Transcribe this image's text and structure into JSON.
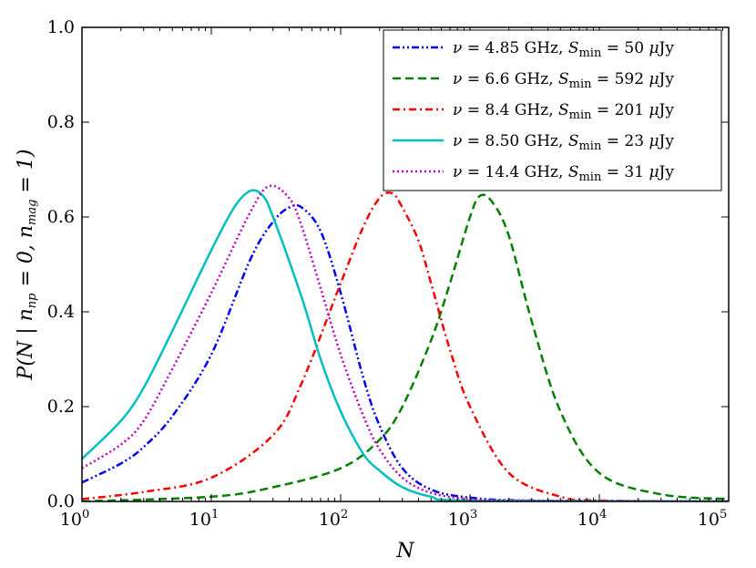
{
  "chart_data": {
    "type": "line",
    "x_scale": "log",
    "xlabel": "N",
    "ylabel": "P(N | n_np = 0, n_mag = 1)",
    "xlim": [
      1,
      100000
    ],
    "ylim": [
      0.0,
      1.0
    ],
    "x_ticks": [
      {
        "value": 1,
        "base": "10",
        "exp": "0"
      },
      {
        "value": 10,
        "base": "10",
        "exp": "1"
      },
      {
        "value": 100,
        "base": "10",
        "exp": "2"
      },
      {
        "value": 1000,
        "base": "10",
        "exp": "3"
      },
      {
        "value": 10000,
        "base": "10",
        "exp": "4"
      },
      {
        "value": 100000,
        "base": "10",
        "exp": "5"
      }
    ],
    "y_ticks": [
      {
        "value": 0.0,
        "label": "0.0"
      },
      {
        "value": 0.2,
        "label": "0.2"
      },
      {
        "value": 0.4,
        "label": "0.4"
      },
      {
        "value": 0.6,
        "label": "0.6"
      },
      {
        "value": 0.8,
        "label": "0.8"
      },
      {
        "value": 1.0,
        "label": "1.0"
      }
    ],
    "legend_position": "top-right",
    "series": [
      {
        "name": "ν = 4.85 GHz, S_min = 50 μJy",
        "freq": "4.85",
        "smin": "50",
        "color": "#0000ff",
        "style": "dashdotdot",
        "x": [
          1,
          2,
          3,
          5,
          10,
          20,
          30,
          40,
          50,
          70,
          100,
          150,
          200,
          300,
          500,
          1000,
          3000,
          100000
        ],
        "y": [
          0.04,
          0.08,
          0.115,
          0.18,
          0.31,
          0.51,
          0.59,
          0.62,
          0.62,
          0.57,
          0.44,
          0.26,
          0.16,
          0.07,
          0.025,
          0.008,
          0.002,
          0.0
        ]
      },
      {
        "name": "ν = 6.6 GHz, S_min = 592 μJy",
        "freq": "6.6",
        "smin": "592",
        "color": "#008000",
        "style": "dashed",
        "x": [
          1,
          10,
          30,
          100,
          200,
          300,
          500,
          700,
          1000,
          1200,
          1500,
          2000,
          3000,
          5000,
          10000,
          30000,
          100000
        ],
        "y": [
          0.0,
          0.01,
          0.03,
          0.07,
          0.13,
          0.2,
          0.34,
          0.46,
          0.6,
          0.645,
          0.63,
          0.56,
          0.38,
          0.19,
          0.06,
          0.015,
          0.005
        ]
      },
      {
        "name": "ν = 8.4 GHz, S_min = 201 μJy",
        "freq": "8.4",
        "smin": "201",
        "color": "#ff0000",
        "style": "dashdot",
        "x": [
          1,
          3,
          10,
          30,
          50,
          100,
          150,
          200,
          250,
          300,
          400,
          500,
          700,
          1000,
          2000,
          5000,
          10000,
          100000
        ],
        "y": [
          0.005,
          0.02,
          0.05,
          0.14,
          0.25,
          0.46,
          0.58,
          0.64,
          0.65,
          0.62,
          0.55,
          0.46,
          0.32,
          0.2,
          0.06,
          0.01,
          0.002,
          0.0
        ]
      },
      {
        "name": "ν = 8.50 GHz, S_min = 23 μJy",
        "freq": "8.50",
        "smin": "23",
        "color": "#00bfbf",
        "style": "solid",
        "x": [
          1,
          2,
          3,
          5,
          10,
          15,
          20,
          25,
          30,
          50,
          70,
          100,
          150,
          200,
          300,
          500,
          1000,
          100000
        ],
        "y": [
          0.09,
          0.17,
          0.24,
          0.36,
          0.53,
          0.62,
          0.655,
          0.645,
          0.6,
          0.43,
          0.3,
          0.19,
          0.1,
          0.065,
          0.03,
          0.01,
          0.002,
          0.0
        ]
      },
      {
        "name": "ν = 14.4 GHz, S_min = 31 μJy",
        "freq": "14.4",
        "smin": "31",
        "color": "#bf00bf",
        "style": "dotted",
        "x": [
          1,
          2,
          3,
          5,
          10,
          20,
          28,
          40,
          50,
          70,
          100,
          150,
          200,
          300,
          500,
          1000,
          3000,
          100000
        ],
        "y": [
          0.07,
          0.12,
          0.17,
          0.28,
          0.44,
          0.61,
          0.665,
          0.64,
          0.58,
          0.45,
          0.31,
          0.18,
          0.11,
          0.05,
          0.018,
          0.005,
          0.001,
          0.0
        ]
      }
    ]
  }
}
